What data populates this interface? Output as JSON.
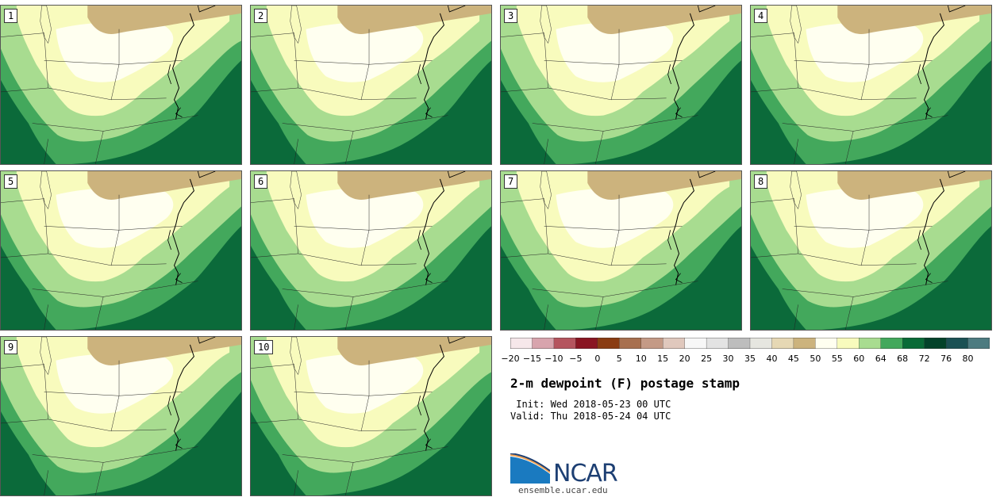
{
  "members": [
    {
      "label": "1"
    },
    {
      "label": "2"
    },
    {
      "label": "3"
    },
    {
      "label": "4"
    },
    {
      "label": "5"
    },
    {
      "label": "6"
    },
    {
      "label": "7"
    },
    {
      "label": "8"
    },
    {
      "label": "9"
    },
    {
      "label": "10"
    }
  ],
  "colorbar": {
    "ticks": [
      "−20",
      "−15",
      "−10",
      "−5",
      "0",
      "5",
      "10",
      "15",
      "20",
      "25",
      "30",
      "35",
      "40",
      "45",
      "50",
      "55",
      "60",
      "64",
      "68",
      "72",
      "76",
      "80"
    ],
    "colors": [
      "#f6e7ea",
      "#d8a4ad",
      "#b5545e",
      "#8a1522",
      "#8a3c12",
      "#a8704f",
      "#c49a86",
      "#e0c8bd",
      "#f7f7f7",
      "#e3e3e3",
      "#bdbdbd",
      "#e6e6e0",
      "#e6d8b4",
      "#ccb37d",
      "#fffff0",
      "#f8fbbd",
      "#a8dc90",
      "#43a85c",
      "#096b37",
      "#03432a",
      "#1b5154",
      "#4d7b80"
    ]
  },
  "title": "2-m dewpoint (F) postage stamp",
  "init_text": " Init: Wed 2018-05-23 00 UTC",
  "valid_text": "Valid: Thu 2018-05-24 04 UTC",
  "logo_text": "NCAR",
  "url": "ensemble.ucar.edu",
  "colors": {
    "ocean": "#0b6a3a",
    "band_64": "#43a85c",
    "band_60": "#a8dc90",
    "band_55": "#f8fbbd",
    "band_50": "#fffff0",
    "band_45": "#ccb37d",
    "ncar_blue": "#1d3f73"
  }
}
